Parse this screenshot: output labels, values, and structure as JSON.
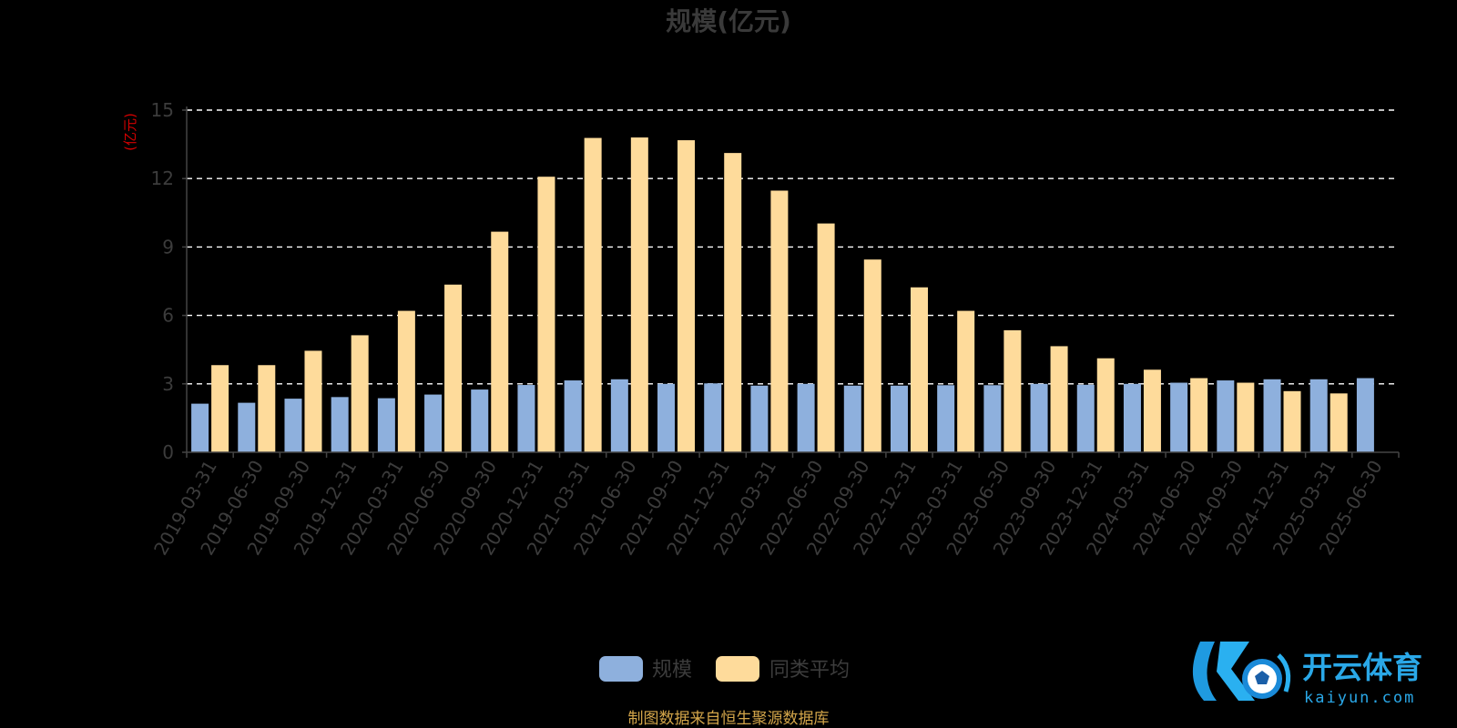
{
  "chart_data": {
    "type": "bar",
    "title": "规模(亿元)",
    "ylabel": "(亿元)",
    "ylim": [
      0,
      15
    ],
    "yticks": [
      0,
      3,
      6,
      9,
      12,
      15
    ],
    "grid": "horizontal-dashed",
    "legend_placement": "bottom-center",
    "categories": [
      "2019-03-31",
      "2019-06-30",
      "2019-09-30",
      "2019-12-31",
      "2020-03-31",
      "2020-06-30",
      "2020-09-30",
      "2020-12-31",
      "2021-03-31",
      "2021-06-30",
      "2021-09-30",
      "2021-12-31",
      "2022-03-31",
      "2022-06-30",
      "2022-09-30",
      "2022-12-31",
      "2023-03-31",
      "2023-06-30",
      "2023-09-30",
      "2023-12-31",
      "2024-03-31",
      "2024-06-30",
      "2024-09-30",
      "2024-12-31",
      "2025-03-31",
      "2025-06-30"
    ],
    "series": [
      {
        "name": "规模",
        "color": "#8eb0dd",
        "values": [
          2.13,
          2.17,
          2.35,
          2.42,
          2.37,
          2.53,
          2.75,
          2.95,
          3.15,
          3.2,
          3.0,
          3.02,
          2.92,
          3.0,
          2.92,
          2.92,
          2.94,
          2.94,
          3.0,
          2.96,
          3.0,
          3.05,
          3.15,
          3.2,
          3.2,
          3.25
        ]
      },
      {
        "name": "同类平均",
        "color": "#fedb9b",
        "values": [
          3.82,
          3.82,
          4.45,
          5.13,
          6.2,
          7.35,
          9.67,
          12.08,
          13.78,
          13.8,
          13.68,
          13.12,
          11.47,
          10.03,
          8.45,
          7.23,
          6.2,
          5.35,
          4.65,
          4.12,
          3.62,
          3.25,
          3.05,
          2.68,
          2.58,
          null
        ]
      }
    ]
  },
  "legend": {
    "items": [
      {
        "label": "规模",
        "color": "#8eb0dd"
      },
      {
        "label": "同类平均",
        "color": "#fedb9b"
      }
    ]
  },
  "source_note": "制图数据来自恒生聚源数据库",
  "watermark": {
    "text": "开云体育",
    "url": "kaiyun.com",
    "color": "#2aa8e8"
  }
}
